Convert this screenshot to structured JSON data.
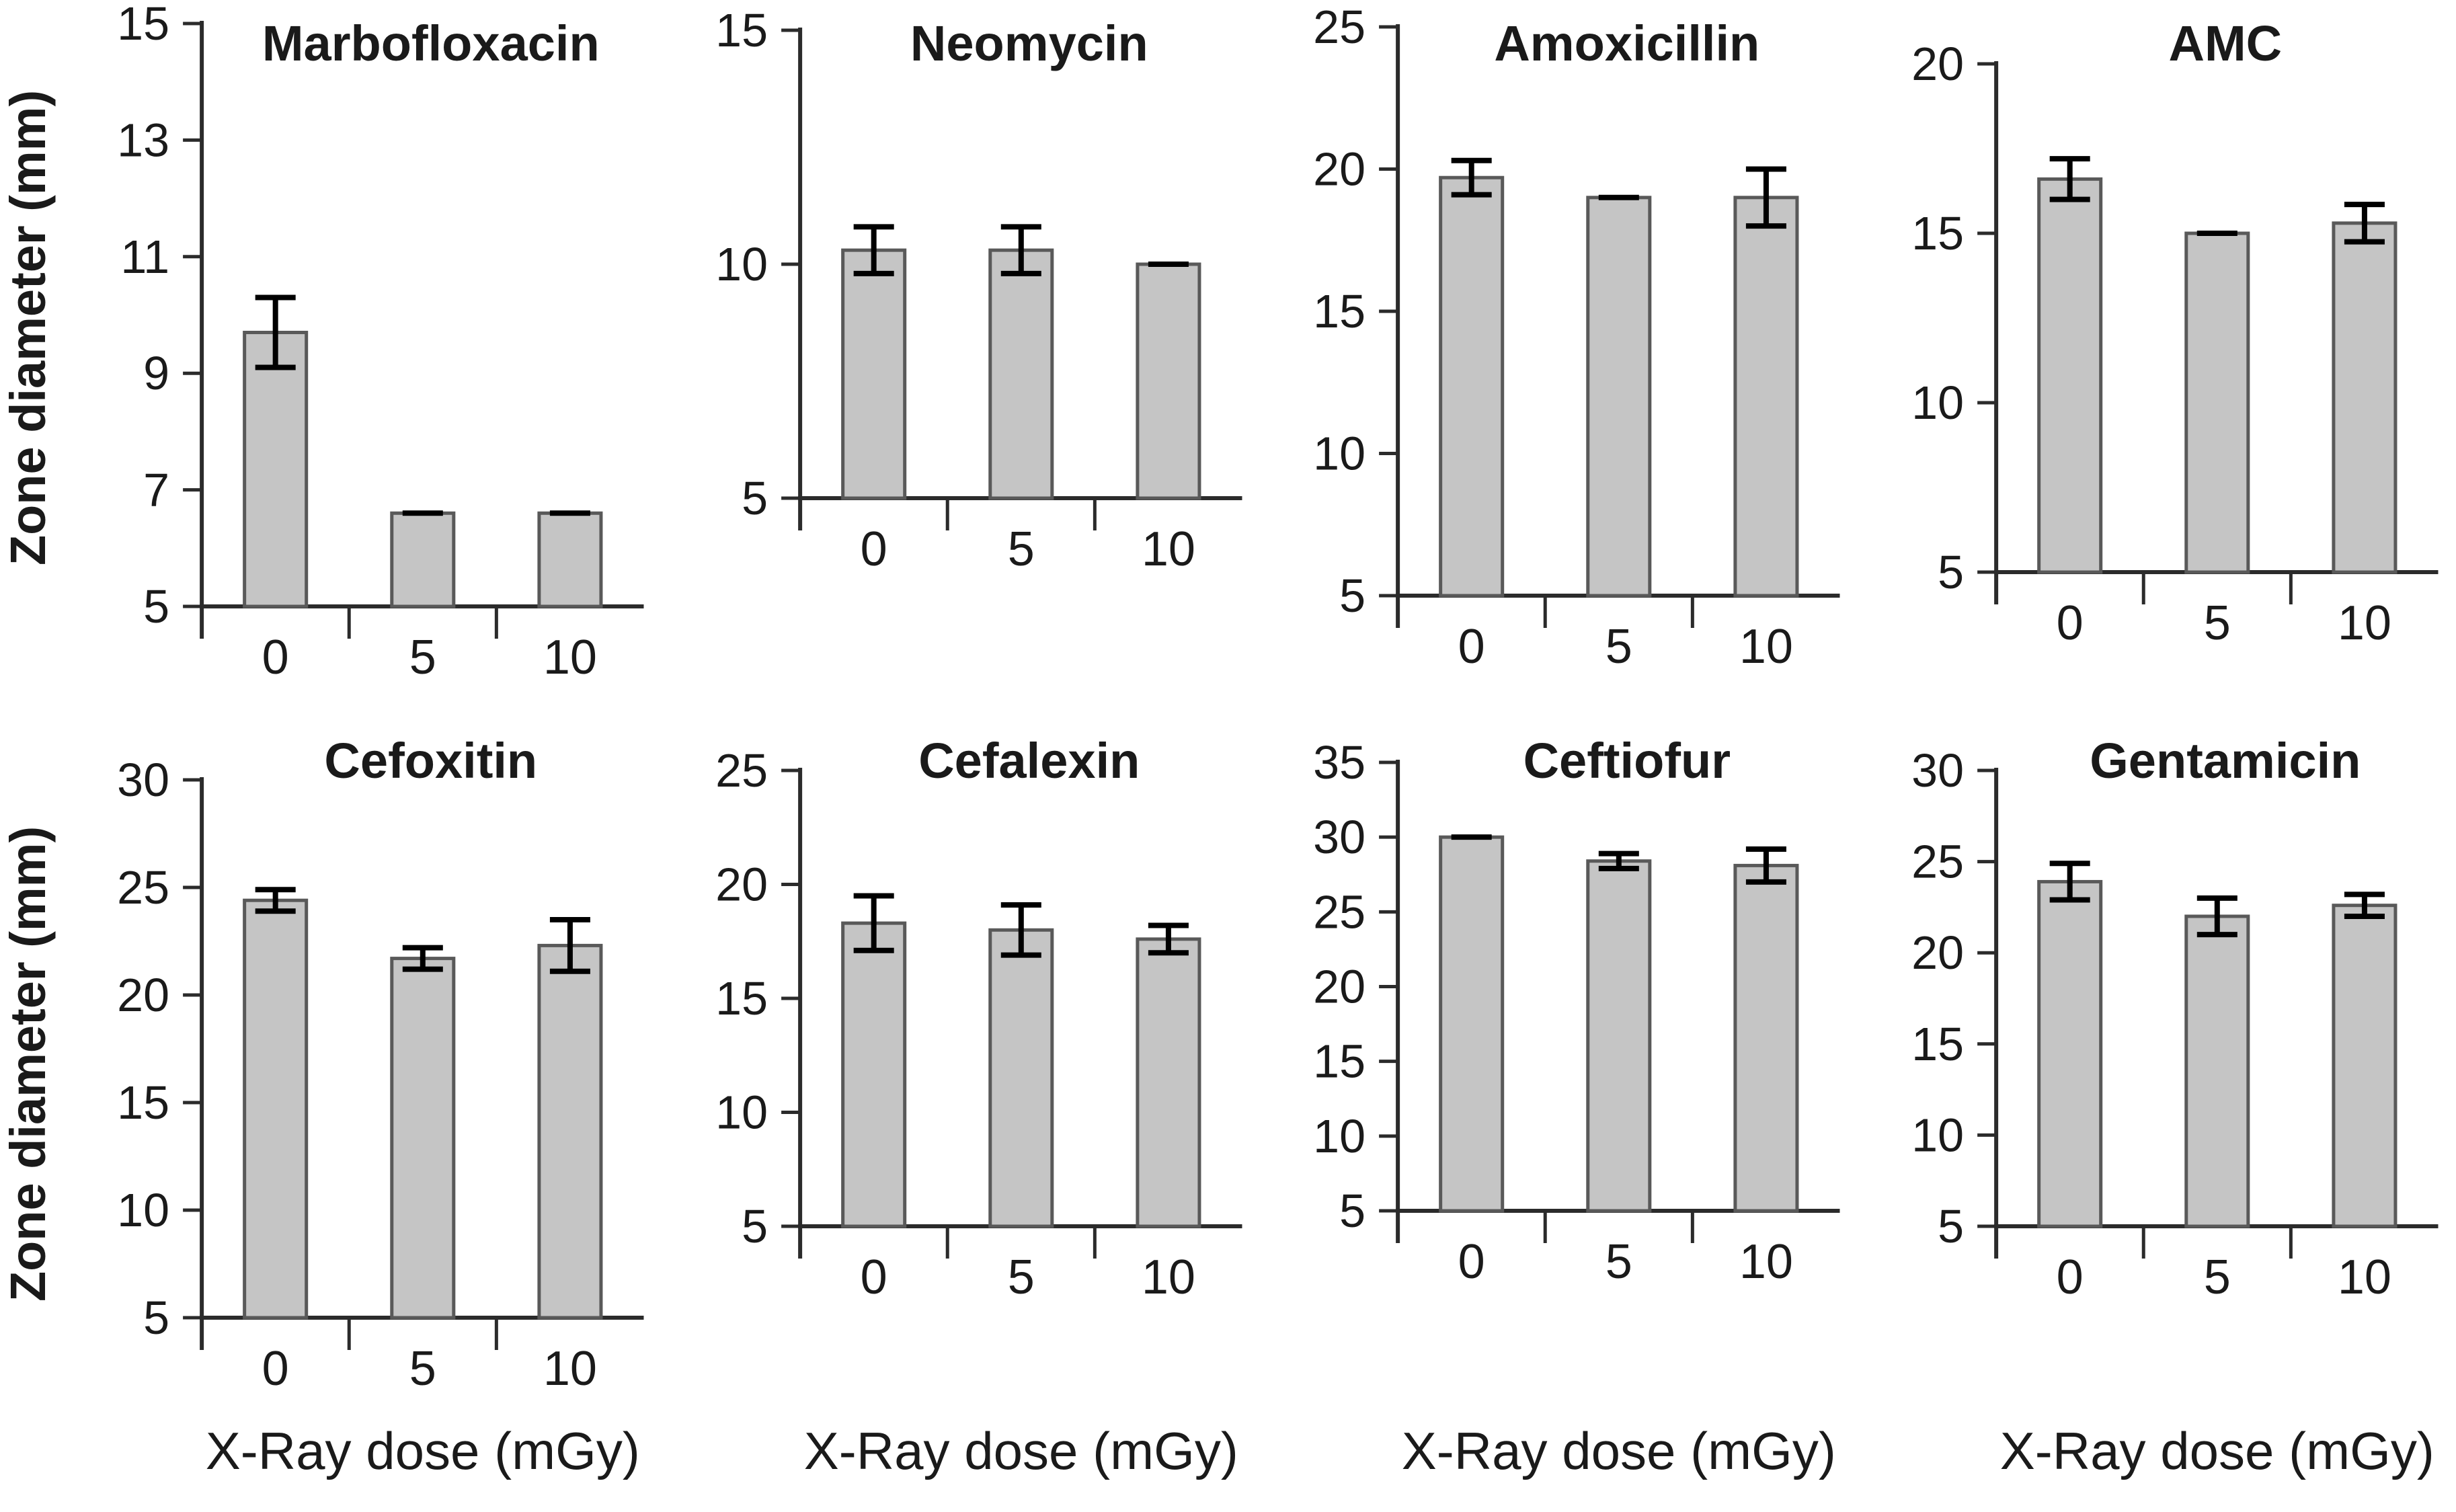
{
  "figure": {
    "ylabel": "Zone diameter (mm)",
    "xlabel": "X-Ray dose (mGy)",
    "colors": {
      "background": "#ffffff",
      "bar_fill": "#c5c5c5",
      "bar_border": "#595959",
      "axis": "#2b2b2b",
      "text": "#1a1a1a",
      "error_bar": "#000000"
    }
  },
  "chart_data": [
    {
      "type": "bar",
      "title": "Marbofloxacin",
      "categories": [
        "0",
        "5",
        "10"
      ],
      "values": [
        9.7,
        6.6,
        6.6
      ],
      "errors": [
        0.6,
        0,
        0
      ],
      "ylim": [
        5,
        15
      ],
      "yticks": [
        5,
        7,
        9,
        11,
        13,
        15
      ],
      "xlabel": "",
      "ylabel": "Zone diameter (mm)",
      "grid": false,
      "legend": "none"
    },
    {
      "type": "bar",
      "title": "Neomycin",
      "categories": [
        "0",
        "5",
        "10"
      ],
      "values": [
        10.3,
        10.3,
        10.0
      ],
      "errors": [
        0.5,
        0.5,
        0
      ],
      "ylim": [
        5,
        15
      ],
      "yticks": [
        5,
        10,
        15
      ],
      "xlabel": "",
      "ylabel": "Zone diameter (mm)",
      "grid": false,
      "legend": "none"
    },
    {
      "type": "bar",
      "title": "Amoxicillin",
      "categories": [
        "0",
        "5",
        "10"
      ],
      "values": [
        19.7,
        19.0,
        19.0
      ],
      "errors": [
        0.6,
        0,
        1.0
      ],
      "ylim": [
        5,
        25
      ],
      "yticks": [
        5,
        10,
        15,
        20,
        25
      ],
      "xlabel": "",
      "ylabel": "Zone diameter (mm)",
      "grid": false,
      "legend": "none"
    },
    {
      "type": "bar",
      "title": "AMC",
      "categories": [
        "0",
        "5",
        "10"
      ],
      "values": [
        16.6,
        15.0,
        15.3
      ],
      "errors": [
        0.6,
        0,
        0.55
      ],
      "ylim": [
        5,
        20
      ],
      "yticks": [
        5,
        10,
        15,
        20
      ],
      "xlabel": "",
      "ylabel": "Zone diameter (mm)",
      "grid": false,
      "legend": "none"
    },
    {
      "type": "bar",
      "title": "Cefoxitin",
      "categories": [
        "0",
        "5",
        "10"
      ],
      "values": [
        24.4,
        21.7,
        22.3
      ],
      "errors": [
        0.5,
        0.5,
        1.2
      ],
      "ylim": [
        5,
        30
      ],
      "yticks": [
        5,
        10,
        15,
        20,
        25,
        30
      ],
      "xlabel": "X-Ray dose (mGy)",
      "ylabel": "Zone diameter (mm)",
      "grid": false,
      "legend": "none"
    },
    {
      "type": "bar",
      "title": "Cefalexin",
      "categories": [
        "0",
        "5",
        "10"
      ],
      "values": [
        18.3,
        18.0,
        17.6
      ],
      "errors": [
        1.2,
        1.1,
        0.6
      ],
      "ylim": [
        5,
        25
      ],
      "yticks": [
        5,
        10,
        15,
        20,
        25
      ],
      "xlabel": "X-Ray dose (mGy)",
      "ylabel": "Zone diameter (mm)",
      "grid": false,
      "legend": "none"
    },
    {
      "type": "bar",
      "title": "Ceftiofur",
      "categories": [
        "0",
        "5",
        "10"
      ],
      "values": [
        30.0,
        28.4,
        28.1
      ],
      "errors": [
        0,
        0.5,
        1.1
      ],
      "ylim": [
        5,
        35
      ],
      "yticks": [
        5,
        10,
        15,
        20,
        25,
        30,
        35
      ],
      "xlabel": "X-Ray dose (mGy)",
      "ylabel": "Zone diameter (mm)",
      "grid": false,
      "legend": "none"
    },
    {
      "type": "bar",
      "title": "Gentamicin",
      "categories": [
        "0",
        "5",
        "10"
      ],
      "values": [
        23.9,
        22.0,
        22.6
      ],
      "errors": [
        1.0,
        1.0,
        0.6
      ],
      "ylim": [
        5,
        30
      ],
      "yticks": [
        5,
        10,
        15,
        20,
        25,
        30
      ],
      "xlabel": "X-Ray dose (mGy)",
      "ylabel": "Zone diameter (mm)",
      "grid": false,
      "legend": "none"
    }
  ]
}
